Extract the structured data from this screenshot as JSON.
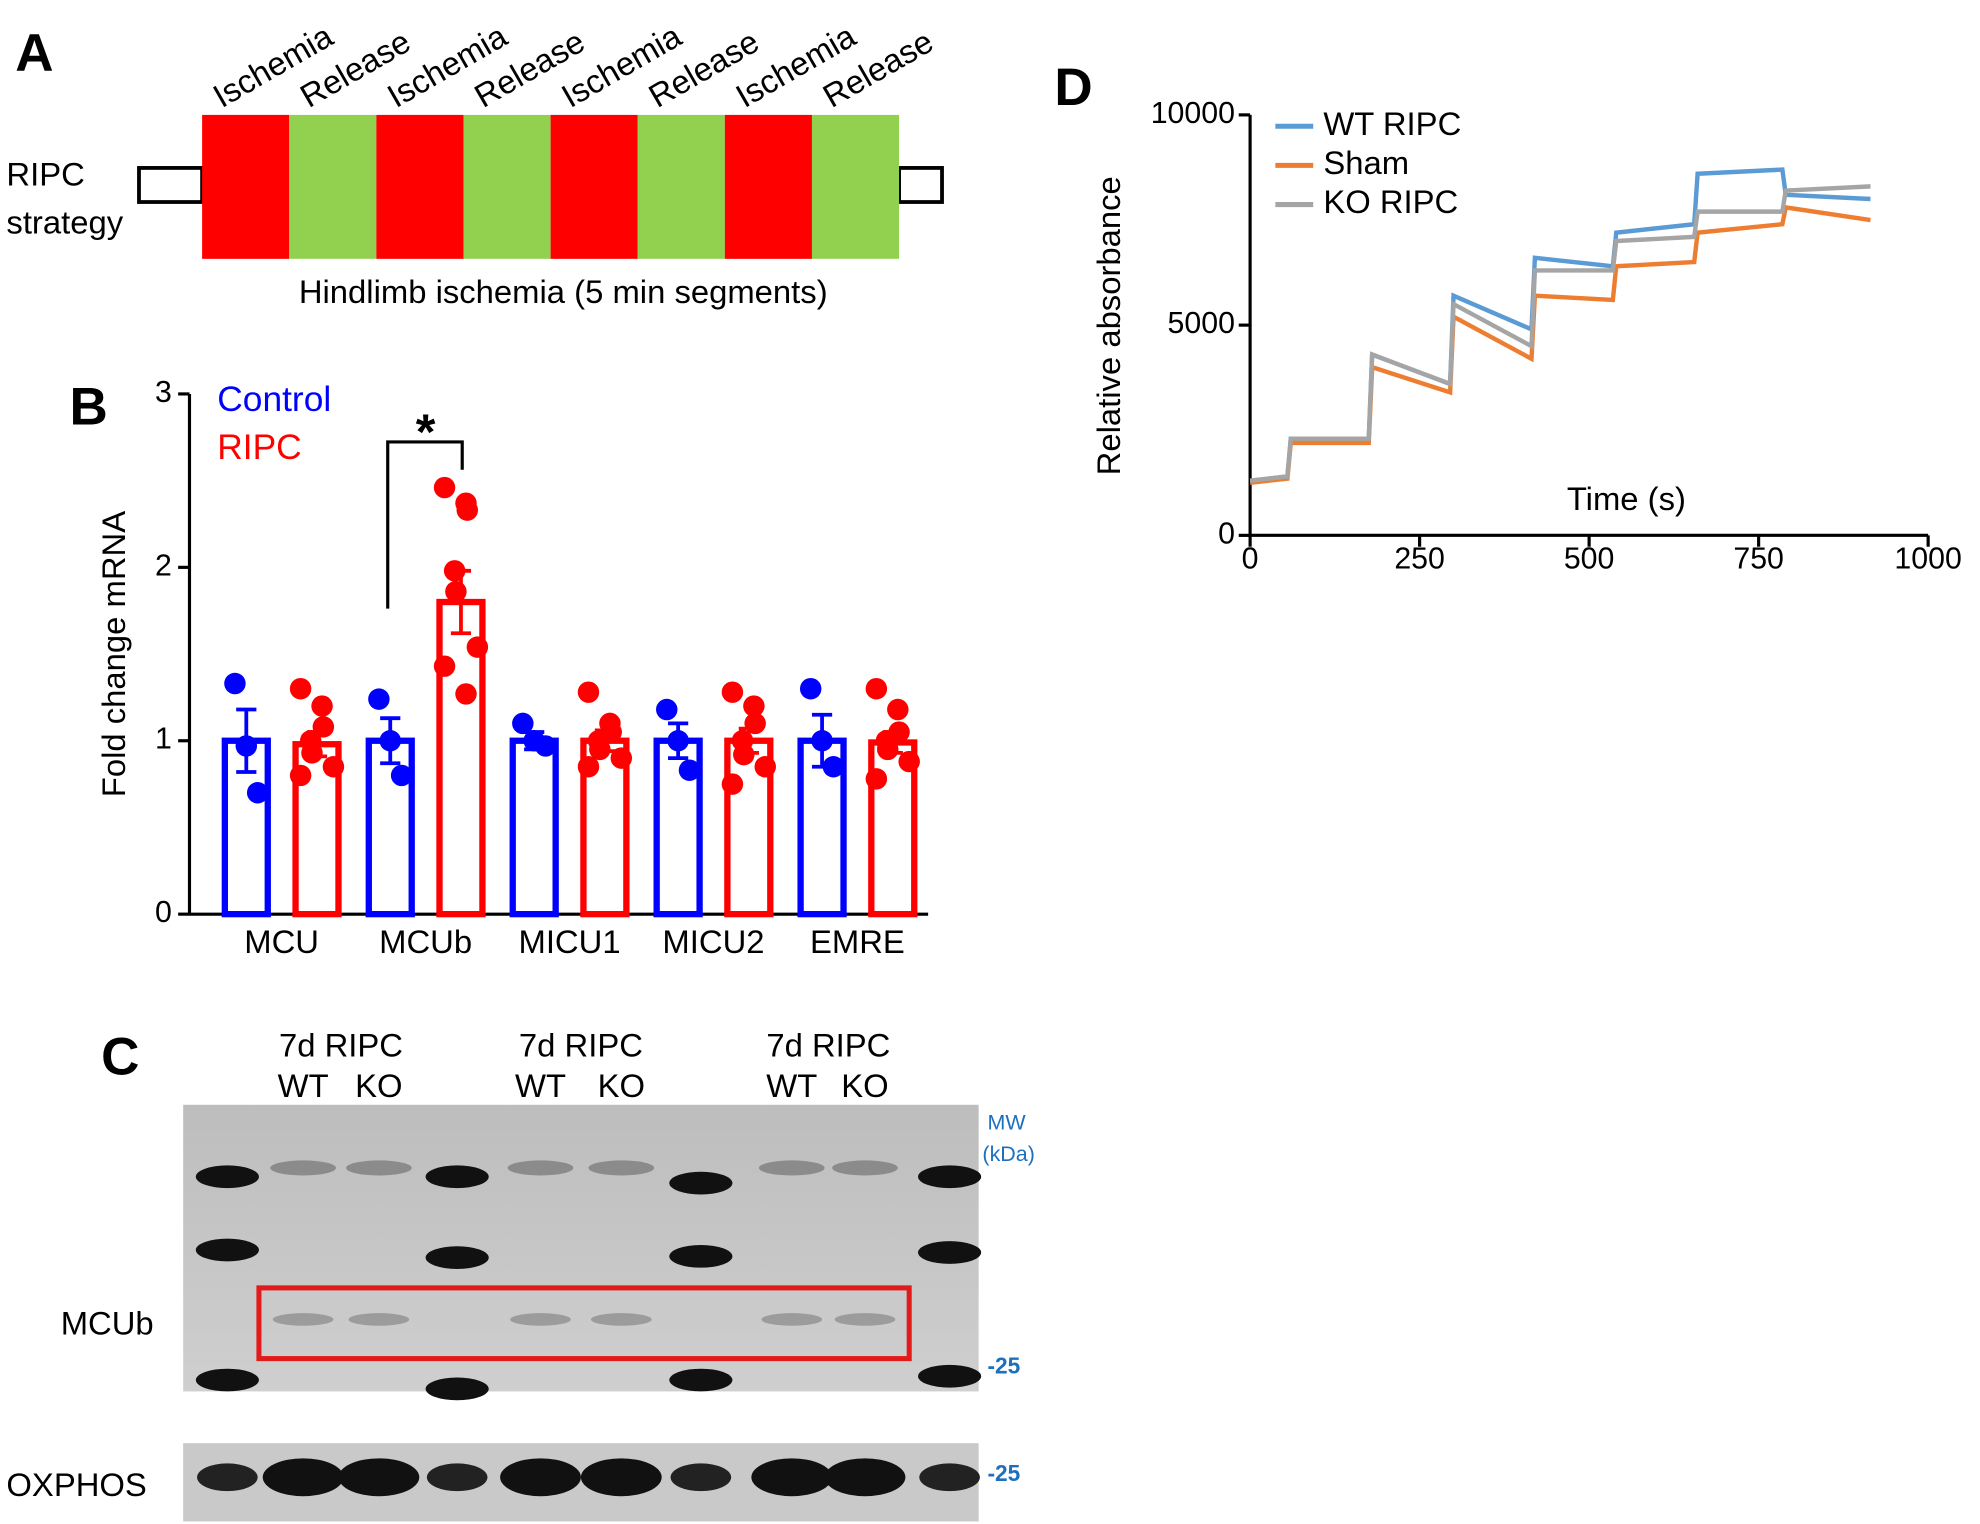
{
  "panel_a": {
    "letter": "A",
    "label_lines": [
      "RIPC",
      "strategy"
    ],
    "segments": [
      "Ischemia",
      "Release",
      "Ischemia",
      "Release",
      "Ischemia",
      "Release",
      "Ischemia",
      "Release"
    ],
    "caption": "Hindlimb ischemia (5 min segments)"
  },
  "chart_data": [
    {
      "type": "bar",
      "letter": "B",
      "ylabel": "Fold change mRNA",
      "categories": [
        "MCU",
        "MCUb",
        "MICU1",
        "MICU2",
        "EMRE"
      ],
      "ylim": [
        0,
        3
      ],
      "yticks": [
        0,
        1,
        2,
        3
      ],
      "annotation": "*",
      "series": [
        {
          "name": "Control",
          "color": "#0000ff",
          "values": [
            1,
            1,
            1,
            1,
            1
          ],
          "errors": [
            0.18,
            0.13,
            0.05,
            0.1,
            0.15
          ],
          "points": [
            [
              1.33,
              0.97,
              0.7
            ],
            [
              1.24,
              1.0,
              0.8
            ],
            [
              1.1,
              1.0,
              0.97
            ],
            [
              1.18,
              1.0,
              0.83
            ],
            [
              1.3,
              1.0,
              0.85
            ]
          ]
        },
        {
          "name": "RIPC",
          "color": "#ff0000",
          "values": [
            0.98,
            1.8,
            1.0,
            1.0,
            0.99
          ],
          "errors": [
            0.07,
            0.18,
            0.06,
            0.07,
            0.06
          ],
          "points": [
            [
              1.3,
              1.2,
              1.08,
              1.0,
              0.93,
              0.85,
              0.8
            ],
            [
              2.46,
              2.37,
              2.33,
              1.98,
              1.86,
              1.54,
              1.43,
              1.27
            ],
            [
              1.28,
              1.1,
              1.05,
              1.0,
              0.95,
              0.9,
              0.85
            ],
            [
              1.28,
              1.2,
              1.1,
              1.0,
              0.92,
              0.85,
              0.75
            ],
            [
              1.3,
              1.18,
              1.05,
              1.0,
              0.95,
              0.88,
              0.78
            ]
          ]
        }
      ]
    },
    {
      "type": "line",
      "letter": "D",
      "xlabel": "Time (s)",
      "ylabel": "Relative absorbance",
      "xlim": [
        0,
        1000
      ],
      "ylim": [
        0,
        10000
      ],
      "xticks": [
        0,
        250,
        500,
        750,
        1000
      ],
      "yticks": [
        0,
        5000,
        10000
      ],
      "legend": "top-left",
      "x": [
        0,
        55,
        60,
        175,
        180,
        295,
        300,
        415,
        420,
        535,
        540,
        655,
        660,
        785,
        790,
        915
      ],
      "series": [
        {
          "name": "WT RIPC",
          "color": "#5b9bd5",
          "values": [
            1300,
            1400,
            2300,
            2300,
            4300,
            3600,
            5700,
            4900,
            6600,
            6400,
            7200,
            7400,
            8600,
            8700,
            8100,
            8000
          ]
        },
        {
          "name": "Sham",
          "color": "#ed7d31",
          "values": [
            1250,
            1350,
            2200,
            2200,
            4000,
            3400,
            5200,
            4200,
            5700,
            5600,
            6400,
            6500,
            7200,
            7400,
            7800,
            7500
          ]
        },
        {
          "name": "KO RIPC",
          "color": "#a5a5a5",
          "values": [
            1300,
            1400,
            2300,
            2300,
            4300,
            3600,
            5500,
            4500,
            6300,
            6300,
            7000,
            7100,
            7700,
            7700,
            8200,
            8300
          ]
        }
      ]
    }
  ],
  "panel_c": {
    "letter": "C",
    "groups": [
      {
        "title": "7d RIPC",
        "lanes": [
          "WT",
          "KO"
        ]
      },
      {
        "title": "7d RIPC",
        "lanes": [
          "WT",
          "KO"
        ]
      },
      {
        "title": "7d RIPC",
        "lanes": [
          "WT",
          "KO"
        ]
      }
    ],
    "rows": [
      "MCUb",
      "OXPHOS"
    ],
    "mw_title": "MW",
    "mw_unit": "(kDa)",
    "mw_markers": [
      "-25",
      "-25"
    ]
  }
}
